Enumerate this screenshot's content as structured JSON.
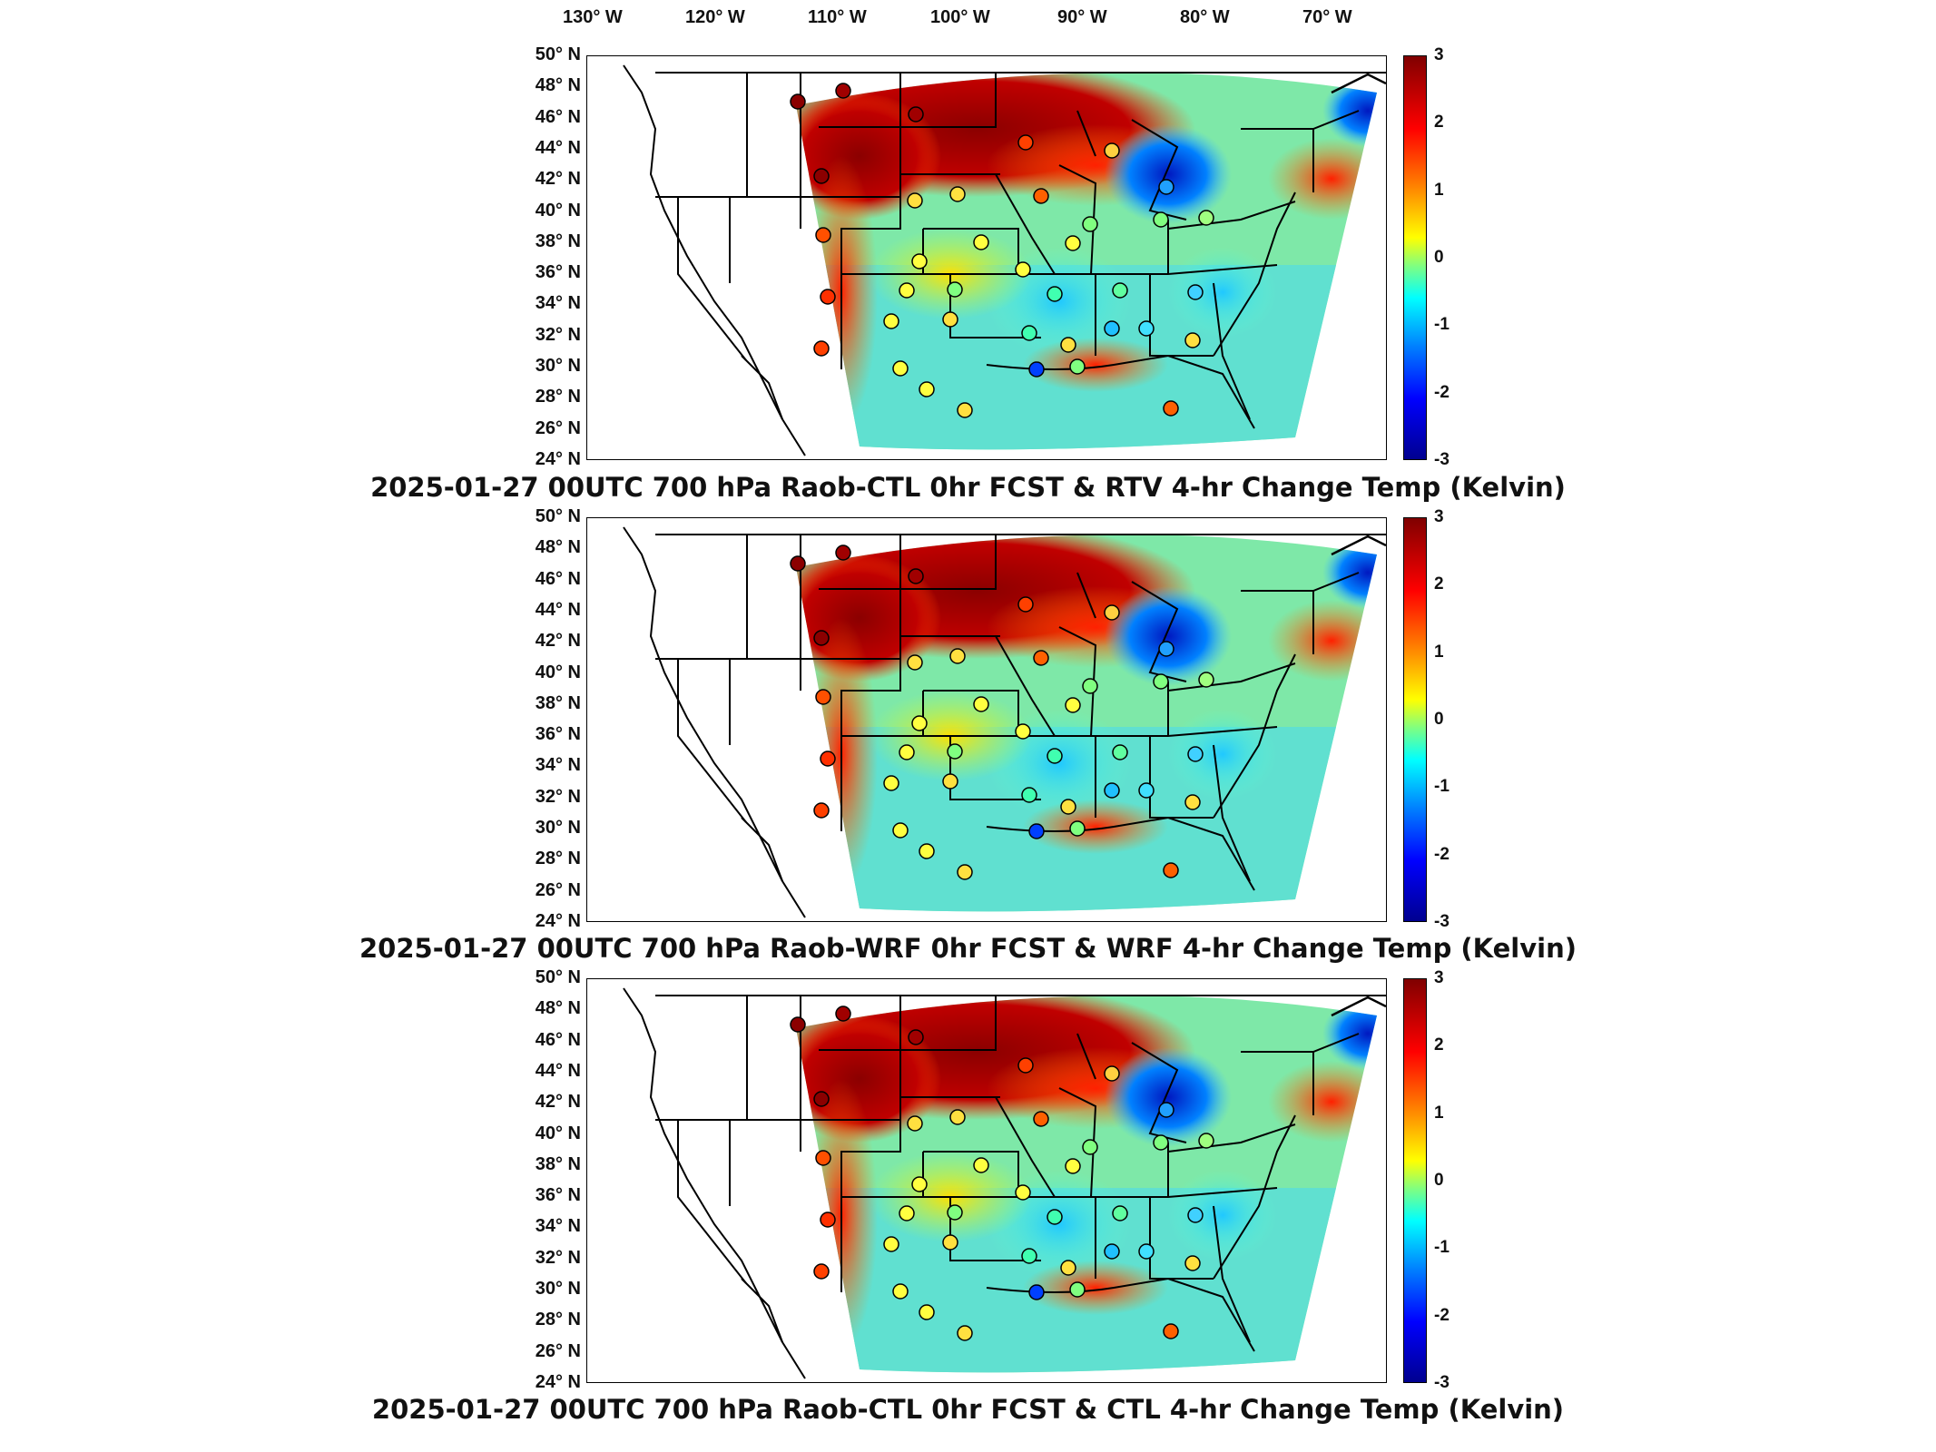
{
  "lon_labels": [
    "130° W",
    "120° W",
    "110° W",
    "100° W",
    "90° W",
    "80° W",
    "70° W"
  ],
  "lat_labels": [
    "50° N",
    "48° N",
    "46° N",
    "44° N",
    "42° N",
    "40° N",
    "38° N",
    "36° N",
    "34° N",
    "32° N",
    "30° N",
    "28° N",
    "26° N",
    "24° N"
  ],
  "colorbar_ticks": [
    "3",
    "2",
    "1",
    "0",
    "-1",
    "-2",
    "-3"
  ],
  "colors": {
    "high": "#800000",
    "mid": "#80ff80",
    "low": "#00008f"
  },
  "panels": [
    {
      "title": "2025-01-27 00UTC 700 hPa Raob-CTL 0hr FCST & RTV 4-hr Change Temp (Kelvin)"
    },
    {
      "title": "2025-01-27 00UTC 700 hPa Raob-WRF 0hr FCST & WRF 4-hr Change Temp (Kelvin)"
    },
    {
      "title": "2025-01-27 00UTC 700 hPa Raob-CTL 0hr FCST & CTL 4-hr Change Temp (Kelvin)"
    }
  ]
}
